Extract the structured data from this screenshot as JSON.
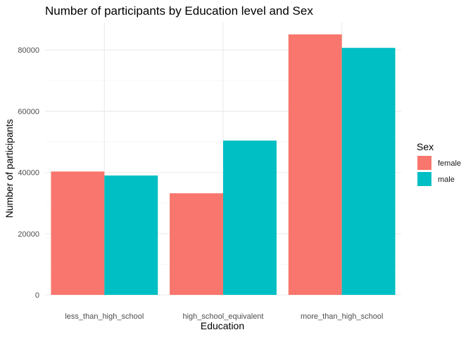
{
  "chart_data": {
    "type": "bar",
    "title": "Number of participants by Education level and Sex",
    "xlabel": "Education",
    "ylabel": "Number of participants",
    "categories": [
      "less_than_high_school",
      "high_school_equivalent",
      "more_than_high_school"
    ],
    "series": [
      {
        "name": "female",
        "color": "#F8766D",
        "values": [
          40300,
          33200,
          85100
        ]
      },
      {
        "name": "male",
        "color": "#00BFC4",
        "values": [
          39000,
          50400,
          80700
        ]
      }
    ],
    "ylim": [
      0,
      89000
    ],
    "yticks": [
      0,
      20000,
      40000,
      60000,
      80000
    ],
    "ytick_labels": [
      "0",
      "20000",
      "40000",
      "60000",
      "80000"
    ],
    "grid": true,
    "legend": {
      "title": "Sex",
      "position": "right"
    }
  }
}
